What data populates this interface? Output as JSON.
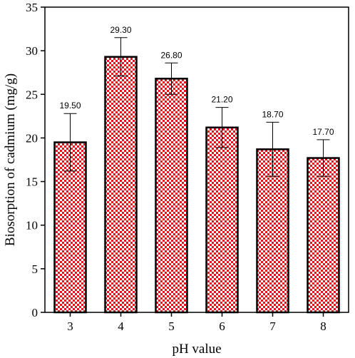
{
  "chart_data": {
    "type": "bar",
    "categories": [
      "3",
      "4",
      "5",
      "6",
      "7",
      "8"
    ],
    "values": [
      19.5,
      29.3,
      26.8,
      21.2,
      18.7,
      17.7
    ],
    "errors": [
      3.3,
      2.2,
      1.8,
      2.3,
      3.1,
      2.1
    ],
    "data_labels": [
      "19.50",
      "29.30",
      "26.80",
      "21.20",
      "18.70",
      "17.70"
    ],
    "title": "",
    "xlabel": "pH value",
    "ylabel": "Biosorption of cadmium  (mg/g)",
    "ylim": [
      0,
      35
    ],
    "yticks": [
      0,
      5,
      10,
      15,
      20,
      25,
      30,
      35
    ],
    "grid": false,
    "legend": "none",
    "colors": {
      "bar_check": "#e0141e",
      "bar_bg": "#ffffff",
      "outline": "#000000"
    }
  }
}
